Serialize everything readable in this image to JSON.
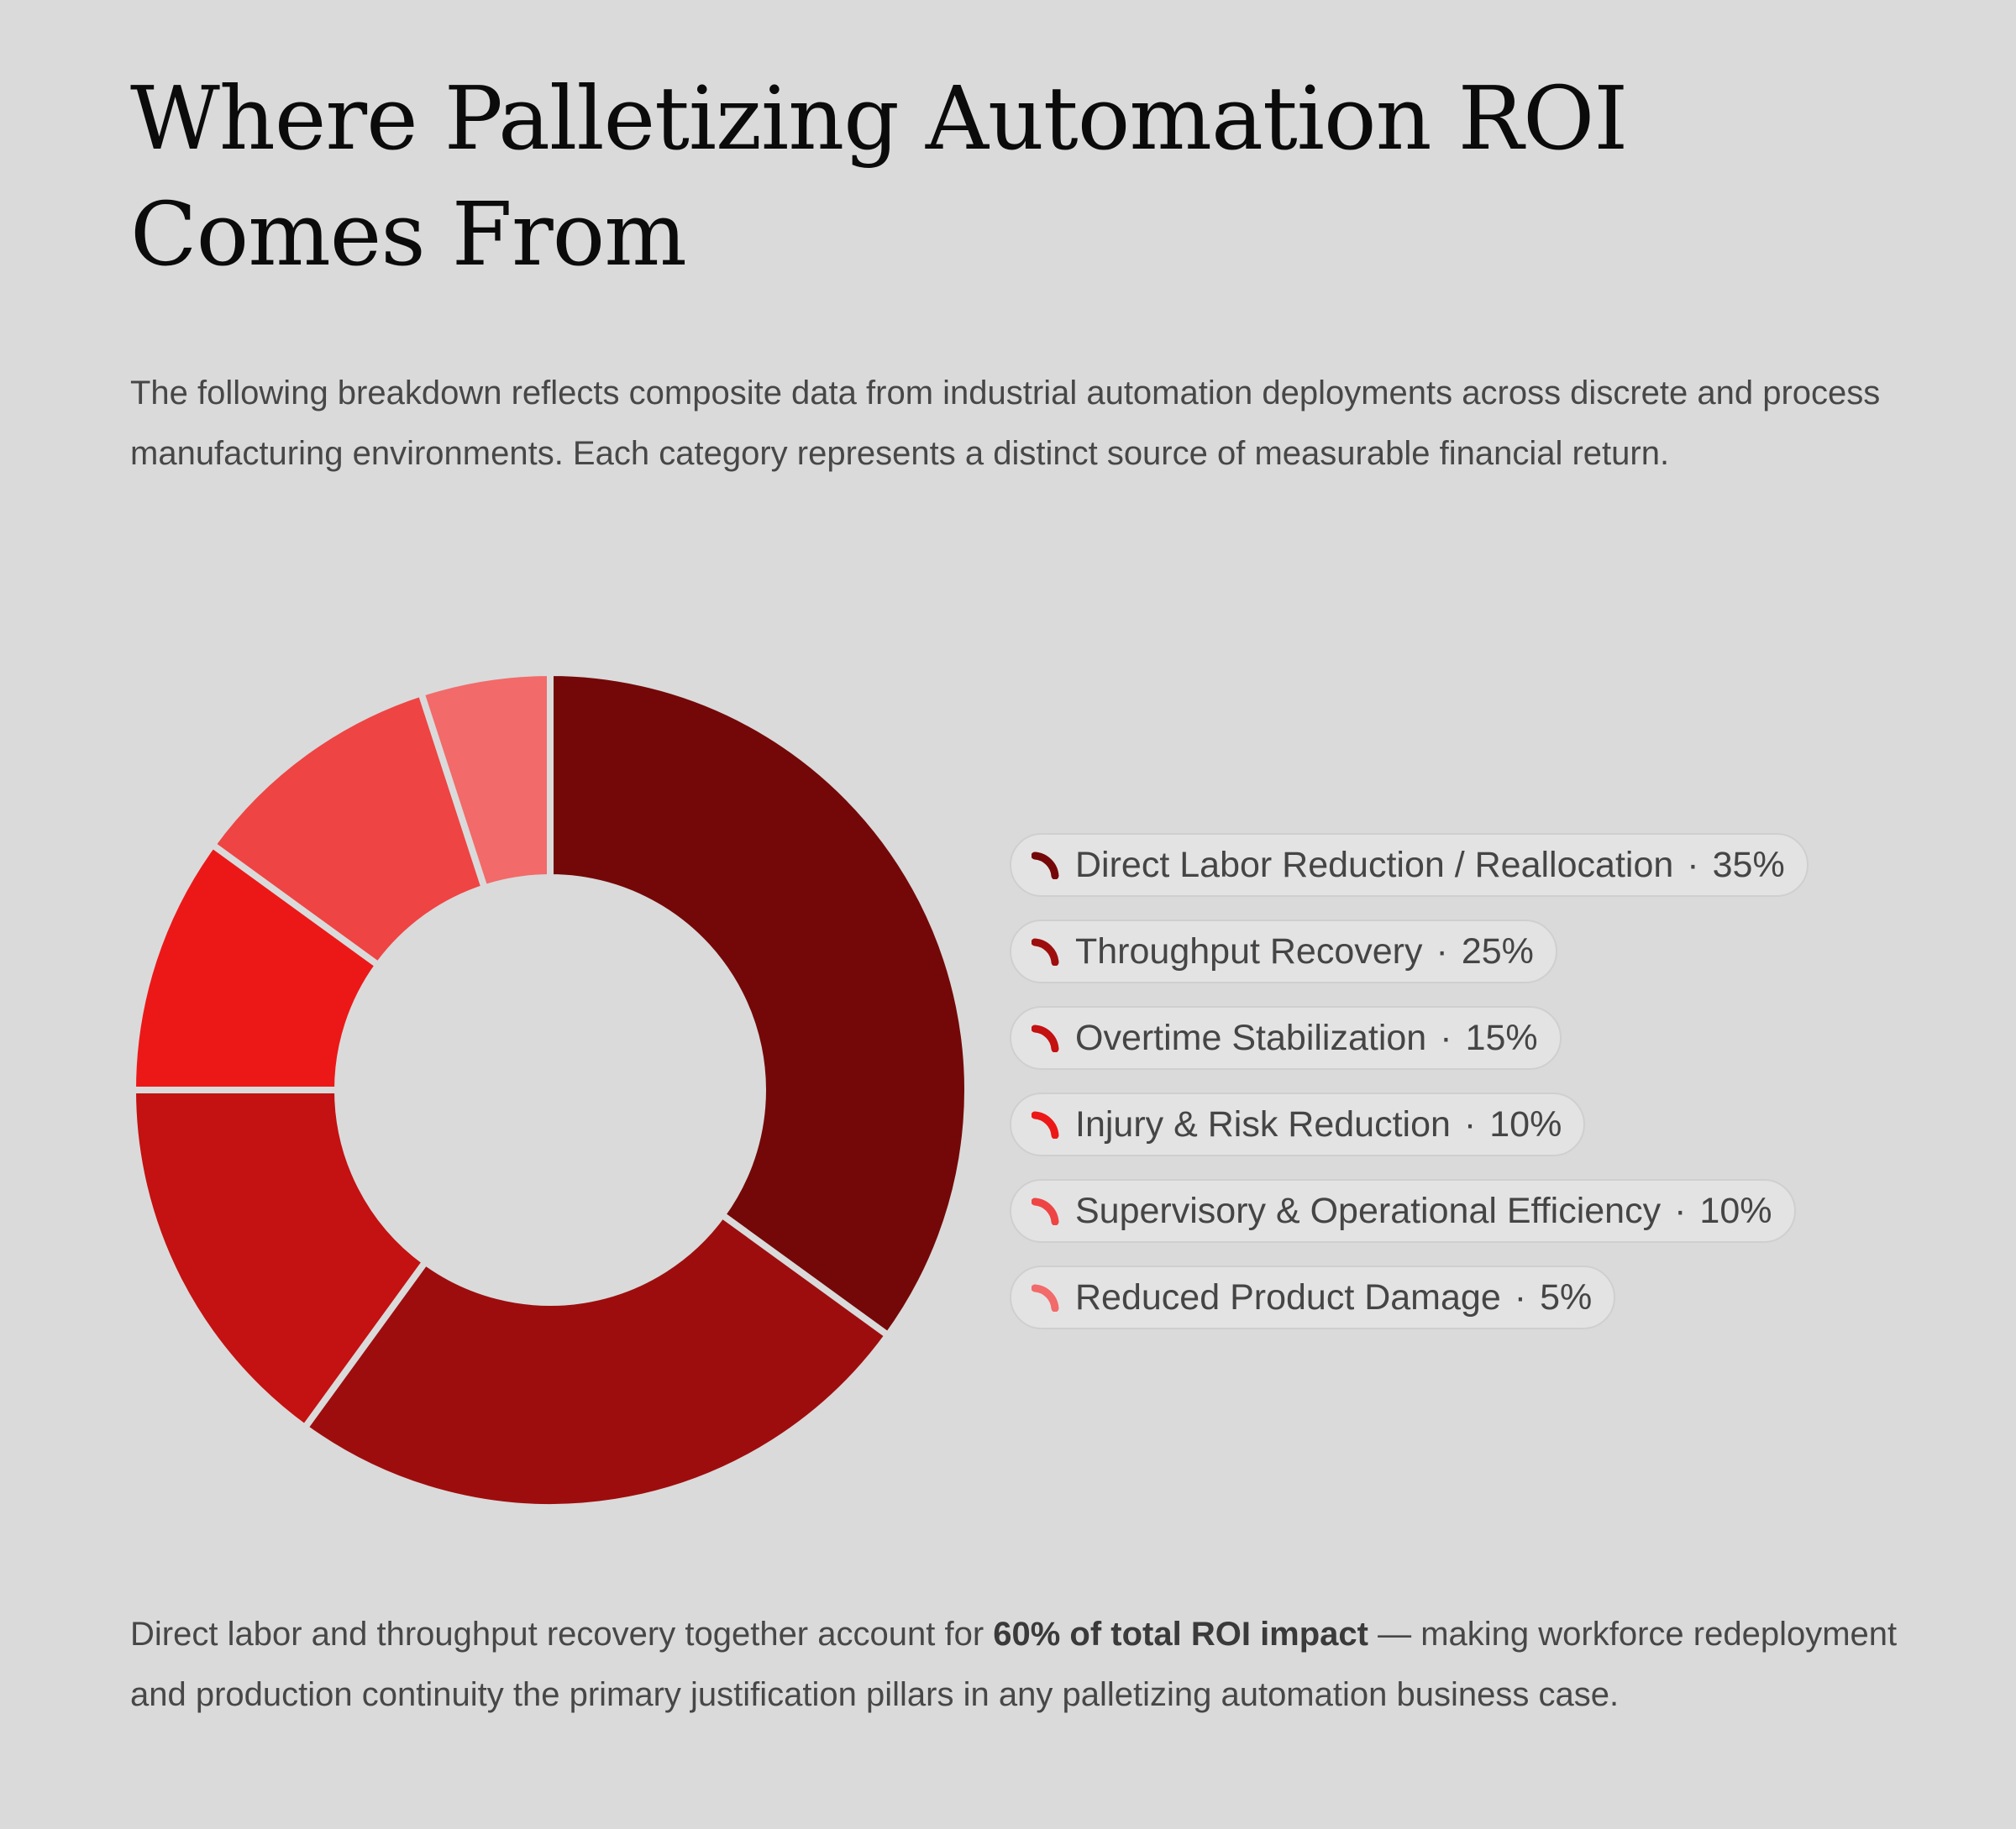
{
  "title": "Where Palletizing Automation ROI Comes From",
  "intro": "The following breakdown reflects composite data from industrial automation deployments across discrete and process manufacturing environments. Each category represents a distinct source of measurable financial return.",
  "outro": {
    "before": "Direct labor and throughput recovery together account for ",
    "bold": "60% of total ROI impact",
    "after": " — making workforce redeployment and production continuity the primary justification pillars in any palletizing automation business case."
  },
  "legend_separator": "·",
  "chart_data": {
    "type": "pie",
    "variant": "donut",
    "title": "Where Palletizing Automation ROI Comes From",
    "unit": "%",
    "legend_position": "right",
    "categories": [
      "Direct Labor Reduction / Reallocation",
      "Throughput Recovery",
      "Overtime Stabilization",
      "Injury & Risk Reduction",
      "Supervisory & Operational Efficiency",
      "Reduced Product Damage"
    ],
    "values": [
      35,
      25,
      15,
      10,
      10,
      5
    ],
    "labels": [
      "35%",
      "25%",
      "15%",
      "10%",
      "10%",
      "5%"
    ],
    "colors": [
      "#740808",
      "#9e0d0e",
      "#c41111",
      "#ec1818",
      "#ef4444",
      "#f26a6a"
    ]
  }
}
